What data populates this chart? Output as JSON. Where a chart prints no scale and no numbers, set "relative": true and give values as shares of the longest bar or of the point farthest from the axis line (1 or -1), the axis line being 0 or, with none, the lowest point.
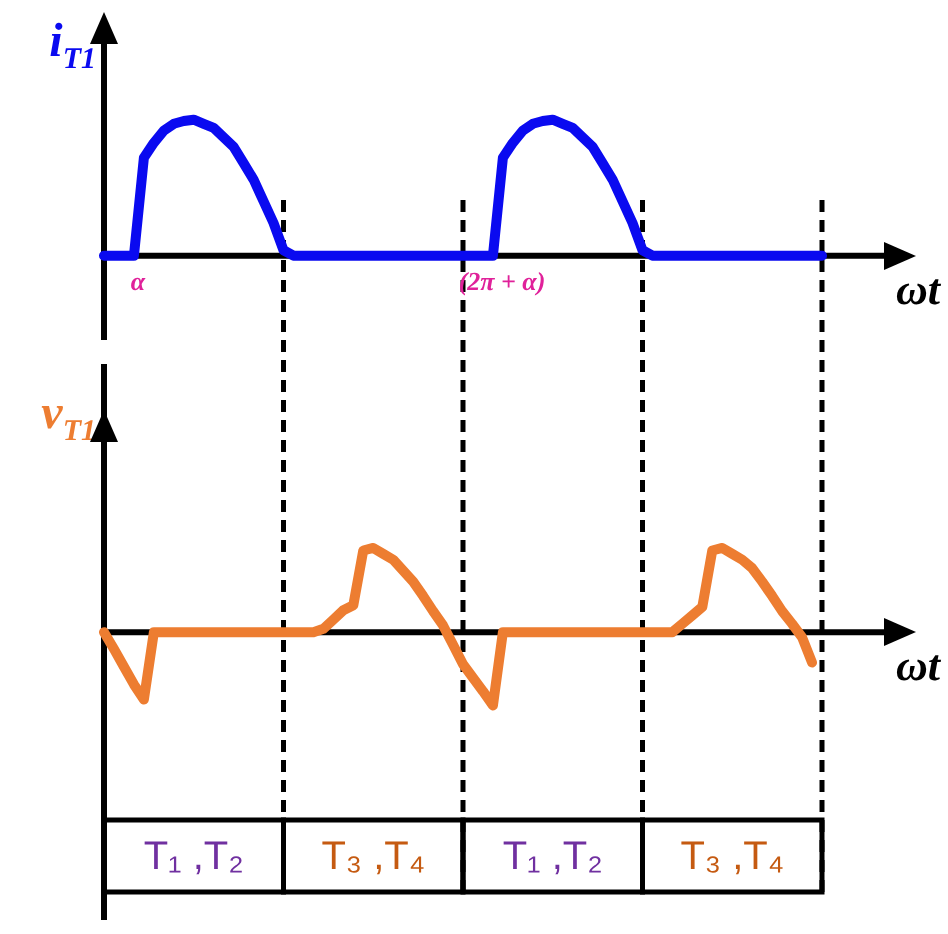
{
  "chart_data": [
    {
      "type": "line",
      "relative": true,
      "ylabel": "i$_{T1}$",
      "xlabel": "ωt",
      "tick_labels": false,
      "grid": "x",
      "categories": [
        null,
        null,
        null,
        null,
        null,
        null,
        null,
        null,
        null,
        null,
        null,
        null,
        null,
        null,
        null,
        null,
        null,
        null,
        null,
        null,
        null,
        null,
        null,
        null,
        null,
        null,
        null,
        null,
        null,
        null,
        null,
        null,
        null,
        null,
        null,
        null,
        null,
        null,
        null,
        null,
        null,
        null,
        null,
        null,
        null,
        null,
        null,
        null,
        null,
        null,
        null,
        null,
        null,
        null,
        null,
        null,
        null,
        null,
        null,
        null,
        null,
        null,
        null,
        null,
        null,
        null,
        null,
        null,
        null,
        null,
        null,
        null,
        null
      ],
      "series": [
        {
          "color": "#0a0af0",
          "values": [
            0,
            0,
            0,
            0,
            0.72,
            0.83,
            0.92,
            0.97,
            0.99,
            1,
            0.97,
            0.94,
            0.87,
            0.8,
            0.68,
            0.56,
            0.4,
            0.24,
            0.04,
            0,
            0,
            0,
            0,
            0,
            0,
            0,
            0,
            0,
            0,
            0,
            0,
            0,
            0,
            0,
            0,
            0,
            0,
            0,
            0,
            0,
            0.72,
            0.83,
            0.92,
            0.97,
            0.99,
            1,
            0.97,
            0.94,
            0.87,
            0.8,
            0.68,
            0.56,
            0.4,
            0.24,
            0.04,
            0,
            0,
            0,
            0,
            0,
            0,
            0,
            0,
            0,
            0,
            0,
            0,
            0,
            0,
            0,
            0,
            0,
            0
          ]
        }
      ],
      "annotations": [
        "α",
        "(2π + α)"
      ]
    },
    {
      "type": "line",
      "relative": true,
      "ylabel": "v$_{T1}$",
      "xlabel": "ωt",
      "tick_labels": false,
      "grid": "x",
      "categories": [
        null,
        null,
        null,
        null,
        null,
        null,
        null,
        null,
        null,
        null,
        null,
        null,
        null,
        null,
        null,
        null,
        null,
        null,
        null,
        null,
        null,
        null,
        null,
        null,
        null,
        null,
        null,
        null,
        null,
        null,
        null,
        null,
        null,
        null,
        null,
        null,
        null,
        null,
        null,
        null,
        null,
        null,
        null,
        null,
        null,
        null,
        null,
        null,
        null,
        null,
        null,
        null,
        null,
        null,
        null,
        null,
        null,
        null,
        null,
        null,
        null,
        null,
        null,
        null,
        null,
        null,
        null,
        null,
        null,
        null,
        null,
        null,
        null
      ],
      "series": [
        {
          "color": "#ed7d31",
          "values": [
            0,
            -0.2,
            -0.41,
            -0.62,
            -0.8,
            0,
            0,
            0,
            0,
            0,
            0,
            0,
            0,
            0,
            0,
            0,
            0,
            0,
            0,
            0,
            0,
            0,
            0.04,
            0.15,
            0.26,
            0.32,
            0.97,
            1,
            0.93,
            0.86,
            0.73,
            0.6,
            0.43,
            0.25,
            0.08,
            -0.15,
            -0.38,
            -0.54,
            -0.7,
            -0.87,
            0,
            0,
            0,
            0,
            0,
            0,
            0,
            0,
            0,
            0,
            0,
            0,
            0,
            0,
            0,
            0,
            0,
            0,
            0.1,
            0.2,
            0.3,
            0.97,
            1,
            0.93,
            0.86,
            0.76,
            0.6,
            0.43,
            0.25,
            0.1,
            -0.06,
            -0.36,
            null
          ]
        }
      ],
      "annotations": [
        "T₁ ,T₂",
        "T₃ ,T₄",
        "T₁ ,T₂",
        "T₃ ,T₄"
      ]
    }
  ]
}
